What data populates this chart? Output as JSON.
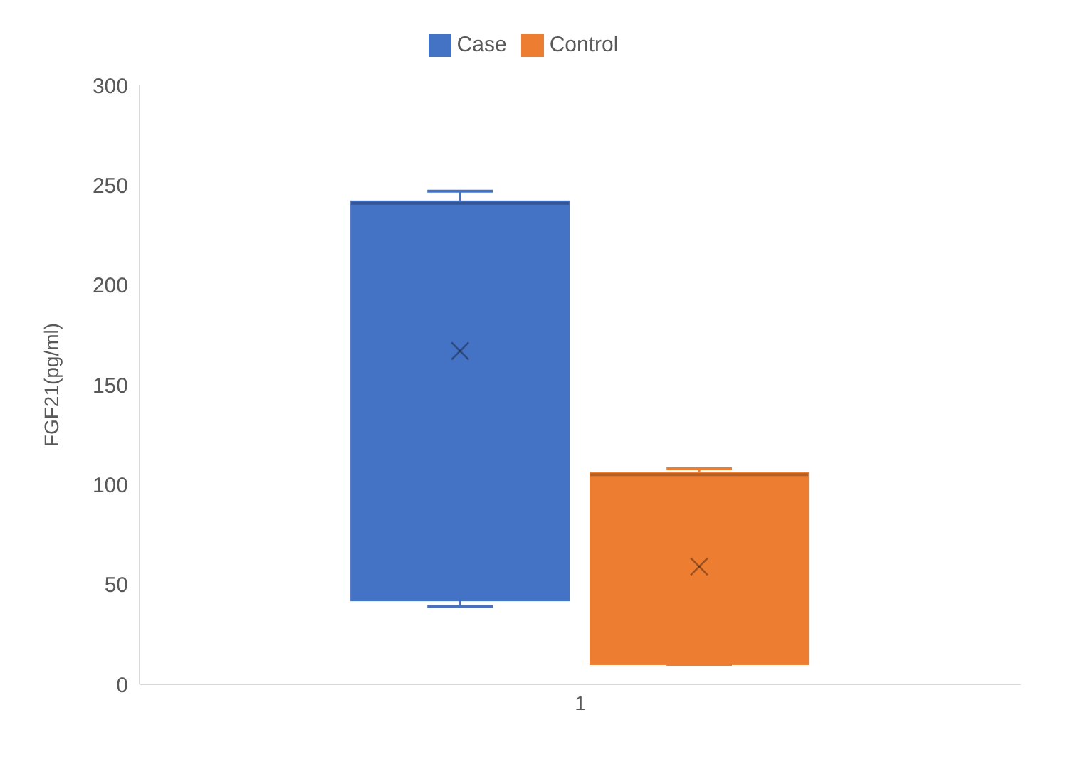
{
  "chart_data": {
    "type": "box",
    "categories": [
      "1"
    ],
    "ylabel": "FGF21(pg/ml)",
    "ylim": [
      0,
      300
    ],
    "yticks": [
      0,
      50,
      100,
      150,
      200,
      250,
      300
    ],
    "grid": false,
    "legend": "top",
    "series": [
      {
        "name": "Case",
        "color": "#4472c4",
        "boxes": [
          {
            "low": 39,
            "q1": 42,
            "median": 241,
            "q3": 242,
            "high": 247,
            "mean": 167
          }
        ]
      },
      {
        "name": "Control",
        "color": "#ed7d31",
        "boxes": [
          {
            "low": 10,
            "q1": 10,
            "median": 105,
            "q3": 106,
            "high": 108,
            "mean": 59
          }
        ]
      }
    ]
  }
}
